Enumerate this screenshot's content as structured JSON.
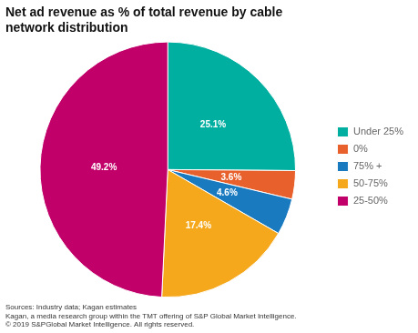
{
  "chart_data": {
    "type": "pie",
    "title": "Net ad revenue as % of total revenue by cable\nnetwork distribution",
    "categories": [
      "Under 25%",
      "0%",
      "75% +",
      "50-75%",
      "25-50%"
    ],
    "values": [
      25.1,
      3.6,
      4.6,
      17.4,
      49.2
    ],
    "value_labels": [
      "25.1%",
      "3.6%",
      "4.6%",
      "17.4%",
      "49.2%"
    ],
    "colors": [
      "#00AFA0",
      "#E8612C",
      "#1A7ABF",
      "#F5A81C",
      "#C2006A"
    ],
    "data_labels": true,
    "legend": "right",
    "annotations": [
      "Sources: Industry data; Kagan estimates",
      "Kagan, a media research group within the TMT offering of S&P Global Market Intelligence.",
      "© 2019 S&PGlobal Market Intelligence. All rights reserved."
    ]
  }
}
